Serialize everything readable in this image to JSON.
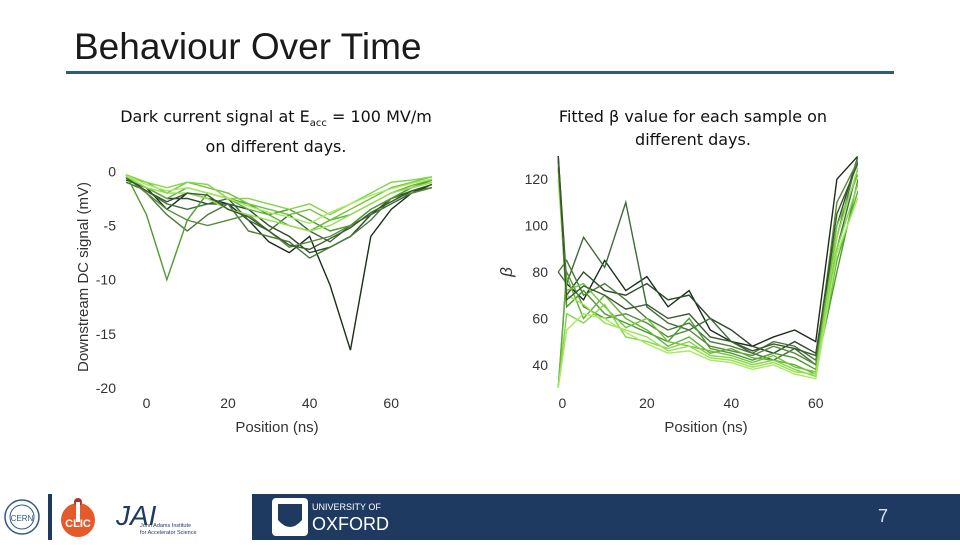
{
  "slide": {
    "title": "Behaviour Over Time",
    "page_number": "7"
  },
  "captions": {
    "left_line1_pre": "Dark current signal at E",
    "left_line1_sub": "acc",
    "left_line1_post": " = 100 MV/m",
    "left_line2": "on different days.",
    "right_line1": "Fitted β value for each sample on",
    "right_line2": "different days."
  },
  "footer": {
    "logos": {
      "cern": "CERN",
      "clic": "CLIC",
      "jai": "JAI",
      "jai_text_1": "John Adams Institute",
      "jai_text_2": "for Accelerator Science",
      "oxford_1": "UNIVERSITY OF",
      "oxford_2": "OXFORD"
    },
    "colors": {
      "bar": "#1f3a60"
    }
  },
  "chart_data": [
    {
      "type": "line",
      "title": "",
      "xlabel": "Position (ns)",
      "ylabel": "Downstream DC signal (mV)",
      "xlim": [
        -6,
        70
      ],
      "ylim": [
        -20,
        0.5
      ],
      "xticks": [
        0,
        20,
        40,
        60
      ],
      "yticks": [
        0,
        -5,
        -10,
        -15,
        -20
      ],
      "x": [
        -5,
        0,
        5,
        10,
        15,
        20,
        25,
        30,
        35,
        40,
        45,
        50,
        55,
        60,
        65,
        70
      ],
      "series": [
        {
          "color": "#1a2e1a",
          "values": [
            -0.5,
            -1.5,
            -3.5,
            -2.0,
            -2.5,
            -3.0,
            -4.5,
            -6.5,
            -7.5,
            -6.0,
            -10.5,
            -16.5,
            -6.0,
            -3.5,
            -2.0,
            -1.2
          ]
        },
        {
          "color": "#2d4a2d",
          "values": [
            -0.8,
            -1.5,
            -2.5,
            -2.5,
            -3.0,
            -3.0,
            -3.5,
            -5.0,
            -6.0,
            -7.5,
            -7.0,
            -6.0,
            -4.0,
            -2.5,
            -1.8,
            -1.5
          ]
        },
        {
          "color": "#3d6b3d",
          "values": [
            -1.0,
            -1.8,
            -3.0,
            -3.5,
            -3.0,
            -2.5,
            -4.5,
            -5.5,
            -4.0,
            -5.5,
            -6.5,
            -5.0,
            -4.0,
            -3.0,
            -2.0,
            -1.5
          ]
        },
        {
          "color": "#4a7a3a",
          "values": [
            -0.5,
            -2.0,
            -4.0,
            -5.5,
            -4.0,
            -3.0,
            -5.5,
            -6.0,
            -6.5,
            -8.0,
            -7.0,
            -6.0,
            -4.5,
            -2.5,
            -1.5,
            -1.0
          ]
        },
        {
          "color": "#5c8a3c",
          "values": [
            -0.5,
            -2.0,
            -3.5,
            -4.5,
            -5.0,
            -4.5,
            -4.0,
            -5.5,
            -7.0,
            -6.5,
            -6.0,
            -5.0,
            -3.5,
            -2.5,
            -2.0,
            -1.5
          ]
        },
        {
          "color": "#4f9a2f",
          "values": [
            -0.3,
            -4.0,
            -10.0,
            -4.5,
            -2.0,
            -2.5,
            -3.0,
            -4.0,
            -3.5,
            -4.5,
            -5.5,
            -5.0,
            -3.5,
            -2.5,
            -1.5,
            -0.8
          ]
        },
        {
          "color": "#62b23a",
          "values": [
            -0.5,
            -1.5,
            -2.5,
            -1.5,
            -2.0,
            -2.5,
            -3.5,
            -4.0,
            -5.0,
            -5.5,
            -4.5,
            -4.0,
            -3.0,
            -2.0,
            -1.3,
            -0.8
          ]
        },
        {
          "color": "#72c43c",
          "values": [
            -0.5,
            -1.0,
            -2.0,
            -1.0,
            -1.5,
            -2.0,
            -3.0,
            -3.5,
            -4.0,
            -3.5,
            -4.5,
            -3.5,
            -2.5,
            -1.5,
            -1.0,
            -0.5
          ]
        },
        {
          "color": "#84d44a",
          "values": [
            -0.3,
            -1.0,
            -1.5,
            -1.0,
            -1.2,
            -2.5,
            -2.5,
            -3.0,
            -3.5,
            -3.0,
            -4.0,
            -3.0,
            -2.0,
            -1.0,
            -0.8,
            -0.5
          ]
        },
        {
          "color": "#96e054",
          "values": [
            -0.5,
            -1.5,
            -2.0,
            -2.0,
            -2.5,
            -3.5,
            -4.0,
            -4.5,
            -5.0,
            -5.5,
            -5.0,
            -4.0,
            -3.0,
            -2.0,
            -1.5,
            -1.0
          ]
        },
        {
          "color": "#a6ea60",
          "values": [
            -0.4,
            -1.2,
            -1.8,
            -1.5,
            -2.0,
            -2.5,
            -3.2,
            -3.8,
            -4.2,
            -4.8,
            -3.8,
            -3.0,
            -2.2,
            -1.6,
            -1.1,
            -0.7
          ]
        },
        {
          "color": "#3a5a2a",
          "values": [
            -0.6,
            -1.8,
            -2.8,
            -2.0,
            -2.2,
            -3.5,
            -4.2,
            -5.5,
            -6.8,
            -7.2,
            -6.2,
            -5.2,
            -3.8,
            -2.8,
            -1.8,
            -1.2
          ]
        }
      ]
    },
    {
      "type": "line",
      "title": "",
      "xlabel": "Position (ns)",
      "ylabel": "β",
      "xlim": [
        -2,
        70
      ],
      "ylim": [
        30,
        130
      ],
      "xticks": [
        0,
        20,
        40,
        60
      ],
      "yticks": [
        40,
        60,
        80,
        100,
        120
      ],
      "x": [
        -1,
        1,
        5,
        10,
        15,
        20,
        25,
        30,
        35,
        40,
        45,
        50,
        55,
        60,
        65,
        70
      ],
      "series": [
        {
          "color": "#1a2e1a",
          "values": [
            130,
            75,
            68,
            85,
            72,
            78,
            65,
            72,
            55,
            50,
            48,
            52,
            55,
            50,
            120,
            130
          ]
        },
        {
          "color": "#2d4a2d",
          "values": [
            130,
            70,
            80,
            72,
            70,
            75,
            68,
            70,
            60,
            55,
            48,
            45,
            50,
            45,
            100,
            130
          ]
        },
        {
          "color": "#3d6b3d",
          "values": [
            80,
            75,
            95,
            82,
            110,
            65,
            58,
            55,
            60,
            50,
            45,
            42,
            47,
            40,
            90,
            125
          ]
        },
        {
          "color": "#4a7a3a",
          "values": [
            80,
            85,
            70,
            75,
            68,
            60,
            55,
            58,
            50,
            48,
            45,
            50,
            48,
            42,
            95,
            130
          ]
        },
        {
          "color": "#5c8a3c",
          "values": [
            30,
            80,
            65,
            60,
            62,
            58,
            52,
            55,
            48,
            46,
            44,
            48,
            45,
            40,
            110,
            128
          ]
        },
        {
          "color": "#4f9a2f",
          "values": [
            125,
            65,
            72,
            62,
            58,
            54,
            50,
            60,
            47,
            45,
            42,
            45,
            43,
            38,
            80,
            120
          ]
        },
        {
          "color": "#62b23a",
          "values": [
            30,
            78,
            60,
            70,
            60,
            55,
            48,
            52,
            45,
            47,
            43,
            42,
            40,
            36,
            85,
            115
          ]
        },
        {
          "color": "#72c43c",
          "values": [
            125,
            72,
            75,
            65,
            56,
            60,
            50,
            48,
            46,
            44,
            41,
            44,
            39,
            37,
            100,
            122
          ]
        },
        {
          "color": "#84d44a",
          "values": [
            30,
            62,
            58,
            66,
            52,
            50,
            47,
            50,
            44,
            43,
            40,
            42,
            38,
            35,
            90,
            118
          ]
        },
        {
          "color": "#96e054",
          "values": [
            120,
            70,
            66,
            58,
            55,
            52,
            46,
            48,
            43,
            42,
            39,
            41,
            37,
            36,
            95,
            125
          ]
        },
        {
          "color": "#a6ea60",
          "values": [
            30,
            55,
            62,
            60,
            54,
            49,
            45,
            46,
            42,
            41,
            38,
            40,
            36,
            34,
            88,
            112
          ]
        },
        {
          "color": "#3a5a2a",
          "values": [
            128,
            68,
            74,
            70,
            64,
            66,
            60,
            62,
            52,
            50,
            46,
            49,
            47,
            44,
            105,
            127
          ]
        }
      ]
    }
  ]
}
